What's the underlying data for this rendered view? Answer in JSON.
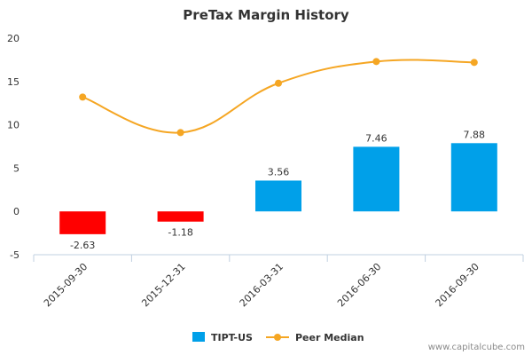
{
  "chart_data": {
    "type": "bar",
    "title": "PreTax Margin History",
    "categories": [
      "2015-09-30",
      "2015-12-31",
      "2016-03-31",
      "2016-06-30",
      "2016-09-30"
    ],
    "ylim": [
      -5,
      20
    ],
    "yticks": [
      -5,
      0,
      5,
      10,
      15,
      20
    ],
    "grid": false,
    "legend_position": "bottom",
    "series": [
      {
        "name": "TIPT-US",
        "type": "bar",
        "values": [
          -2.63,
          -1.18,
          3.56,
          7.46,
          7.88
        ],
        "labels": [
          "-2.63",
          "-1.18",
          "3.56",
          "7.46",
          "7.88"
        ],
        "positive_color": "#00a0e9",
        "negative_color": "#ff0000"
      },
      {
        "name": "Peer Median",
        "type": "line",
        "values": [
          13.2,
          9.1,
          14.8,
          17.3,
          17.2
        ],
        "color": "#f5a623"
      }
    ]
  },
  "watermark": "www.capitalcube.com"
}
